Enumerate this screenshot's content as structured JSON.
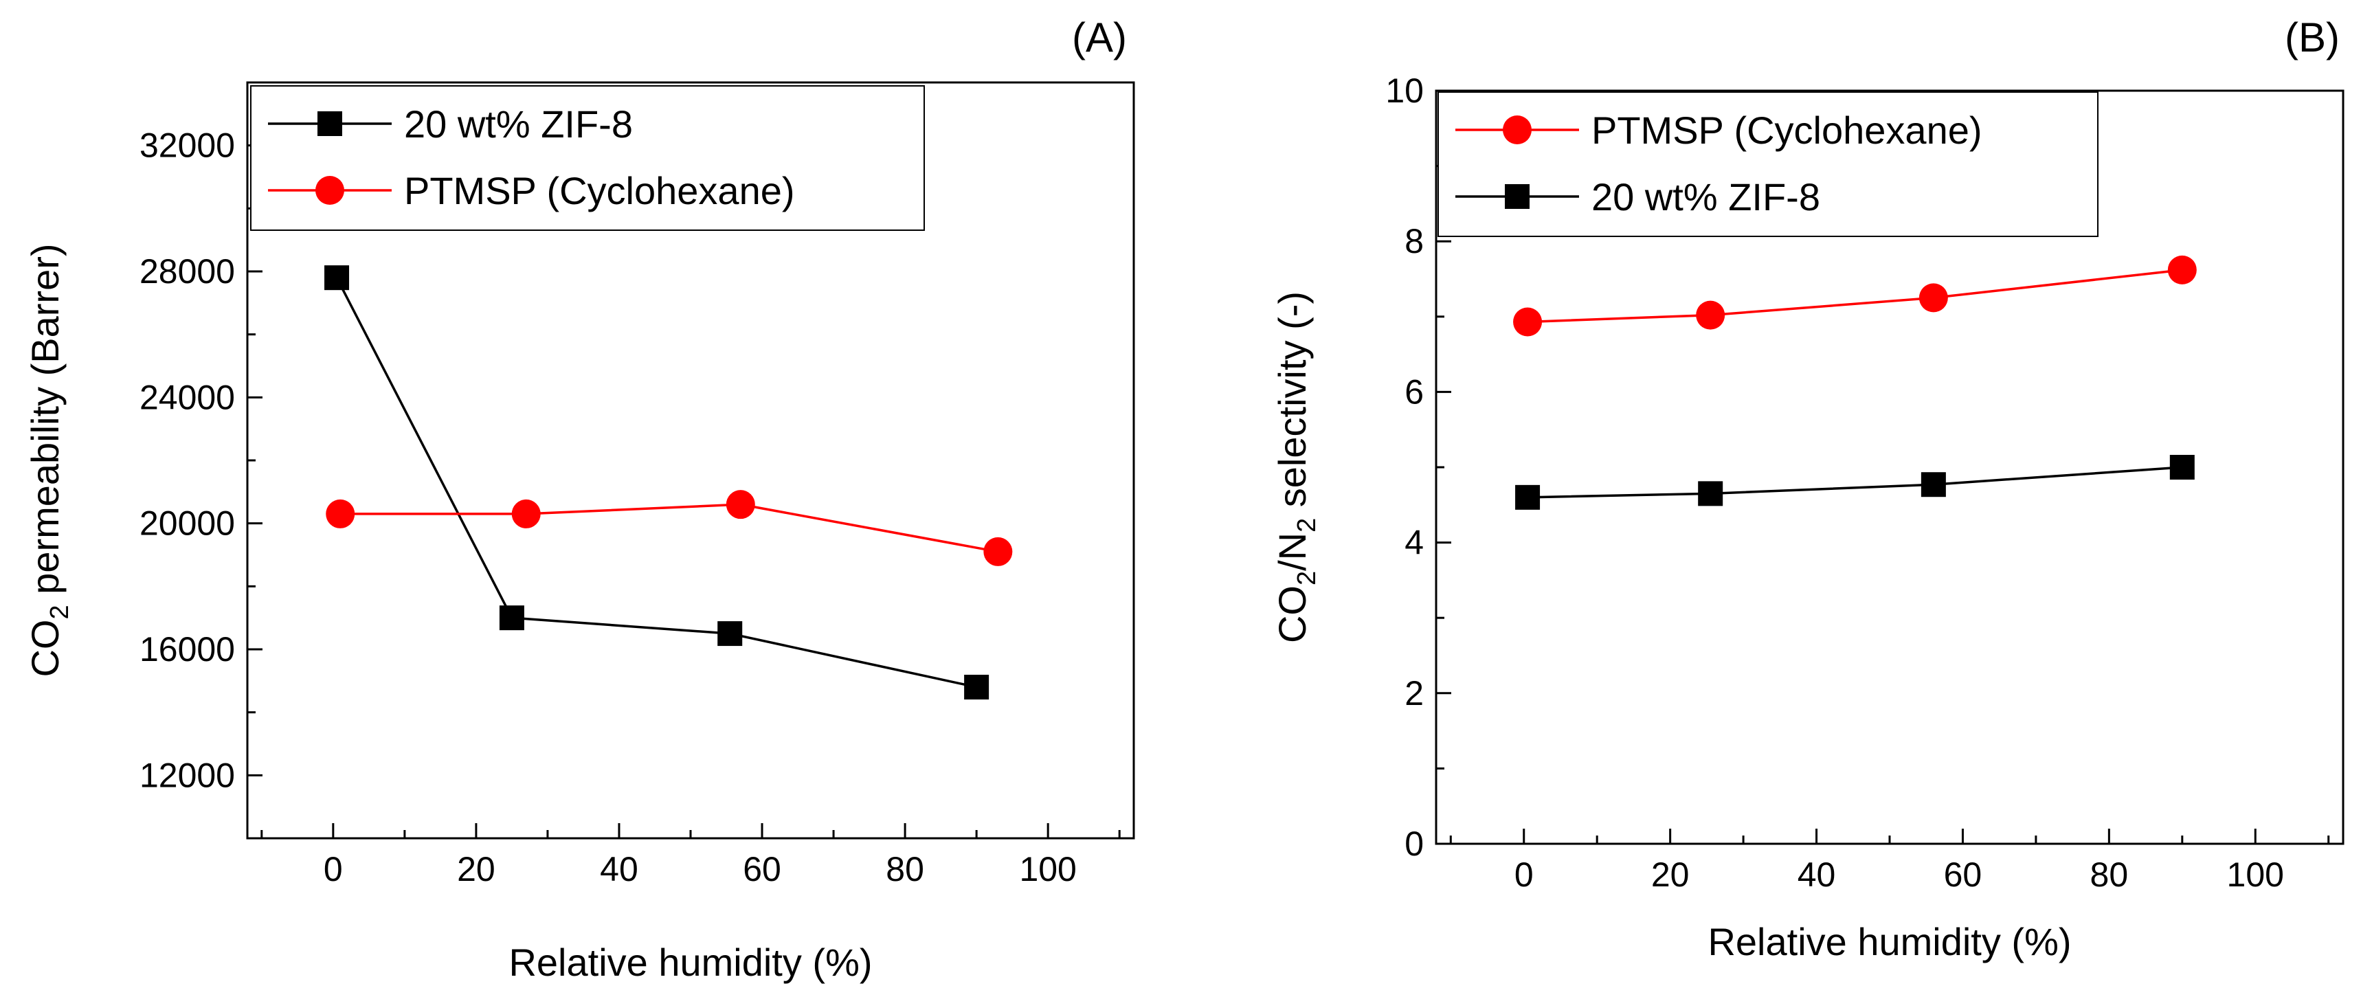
{
  "chart_data": [
    {
      "panel": "(A)",
      "type": "line",
      "xlabel": "Relative humidity (%)",
      "ylabel": {
        "main": "CO",
        "sub": "2",
        "rest": " permeability (Barrer)"
      },
      "xlim": [
        -12,
        112
      ],
      "ylim": [
        10000,
        34000
      ],
      "xticks": [
        0,
        20,
        40,
        60,
        80,
        100
      ],
      "yticks": [
        12000,
        16000,
        20000,
        24000,
        28000,
        32000
      ],
      "xtick_labels": [
        "0",
        "20",
        "40",
        "60",
        "80",
        "100"
      ],
      "ytick_labels": [
        "12000",
        "16000",
        "20000",
        "24000",
        "28000",
        "32000"
      ],
      "legend_position": "top-left",
      "series": [
        {
          "name": "20 wt% ZIF-8",
          "color": "#000000",
          "marker": "square",
          "x": [
            0.5,
            25,
            55.5,
            90
          ],
          "y": [
            27800,
            17000,
            16500,
            14800
          ]
        },
        {
          "name": "PTMSP (Cyclohexane)",
          "color": "#ff0000",
          "marker": "circle",
          "x": [
            1,
            27,
            57,
            93
          ],
          "y": [
            20300,
            20300,
            20600,
            19100
          ]
        }
      ]
    },
    {
      "panel": "(B)",
      "type": "line",
      "xlabel": "Relative humidity (%)",
      "ylabel": {
        "main": "CO",
        "sub": "2",
        "mid": "/N",
        "sub2": "2",
        "rest": " selectivity (-)"
      },
      "xlim": [
        -12,
        112
      ],
      "ylim": [
        0,
        10
      ],
      "xticks": [
        0,
        20,
        40,
        60,
        80,
        100
      ],
      "yticks": [
        0,
        2,
        4,
        6,
        8,
        10
      ],
      "xtick_labels": [
        "0",
        "20",
        "40",
        "60",
        "80",
        "100"
      ],
      "ytick_labels": [
        "0",
        "2",
        "4",
        "6",
        "8",
        "10"
      ],
      "legend_position": "top-left",
      "series": [
        {
          "name": "PTMSP (Cyclohexane)",
          "color": "#ff0000",
          "marker": "circle",
          "x": [
            0.5,
            25.5,
            56,
            90
          ],
          "y": [
            6.93,
            7.02,
            7.25,
            7.62
          ]
        },
        {
          "name": "20 wt% ZIF-8",
          "color": "#000000",
          "marker": "square",
          "x": [
            0.5,
            25.5,
            56,
            90
          ],
          "y": [
            4.6,
            4.65,
            4.77,
            5.0
          ]
        }
      ]
    }
  ]
}
